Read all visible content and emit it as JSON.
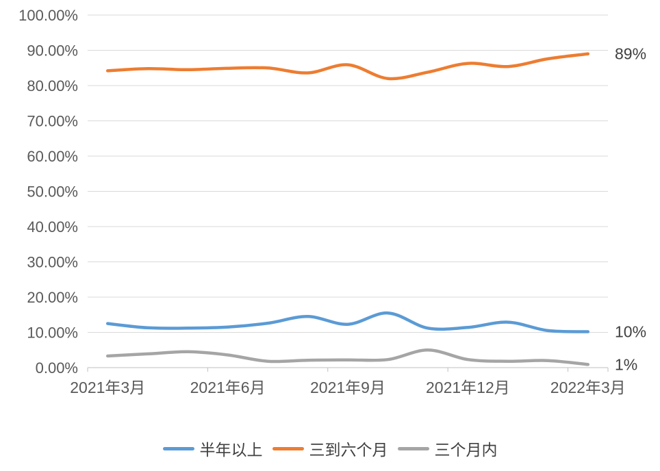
{
  "chart_data": {
    "type": "line",
    "title": "",
    "xlabel": "",
    "ylabel": "",
    "ylim": [
      0,
      100
    ],
    "grid": true,
    "legend_position": "bottom",
    "smooth": true,
    "x_count": 13,
    "x_tick_labels": [
      "2021年3月",
      "2021年6月",
      "2021年9月",
      "2021年12月",
      "2022年3月"
    ],
    "x_tick_positions": [
      0,
      3,
      6,
      9,
      12
    ],
    "y_tick_labels": [
      "0.00%",
      "10.00%",
      "20.00%",
      "30.00%",
      "40.00%",
      "50.00%",
      "60.00%",
      "70.00%",
      "80.00%",
      "90.00%",
      "100.00%"
    ],
    "series": [
      {
        "name": "半年以上",
        "color": "#5B9BD5",
        "end_label": "10%",
        "values": [
          12.5,
          11.3,
          11.2,
          11.5,
          12.6,
          14.5,
          12.3,
          15.5,
          11.2,
          11.4,
          12.9,
          10.5,
          10.2
        ]
      },
      {
        "name": "三到六个月",
        "color": "#ED7D31",
        "end_label": "89%",
        "values": [
          84.2,
          84.8,
          84.5,
          84.9,
          85.0,
          83.6,
          85.9,
          82.0,
          83.8,
          86.3,
          85.4,
          87.6,
          89.0
        ]
      },
      {
        "name": "三个月内",
        "color": "#A5A5A5",
        "end_label": "1%",
        "values": [
          3.3,
          3.9,
          4.5,
          3.6,
          1.8,
          2.1,
          2.2,
          2.3,
          5.0,
          2.3,
          1.8,
          2.0,
          0.9
        ]
      }
    ],
    "colors": {
      "grid": "#D9D9D9",
      "axis": "#BFBFBF",
      "tick_label": "#595959",
      "end_label": "#404040"
    }
  }
}
